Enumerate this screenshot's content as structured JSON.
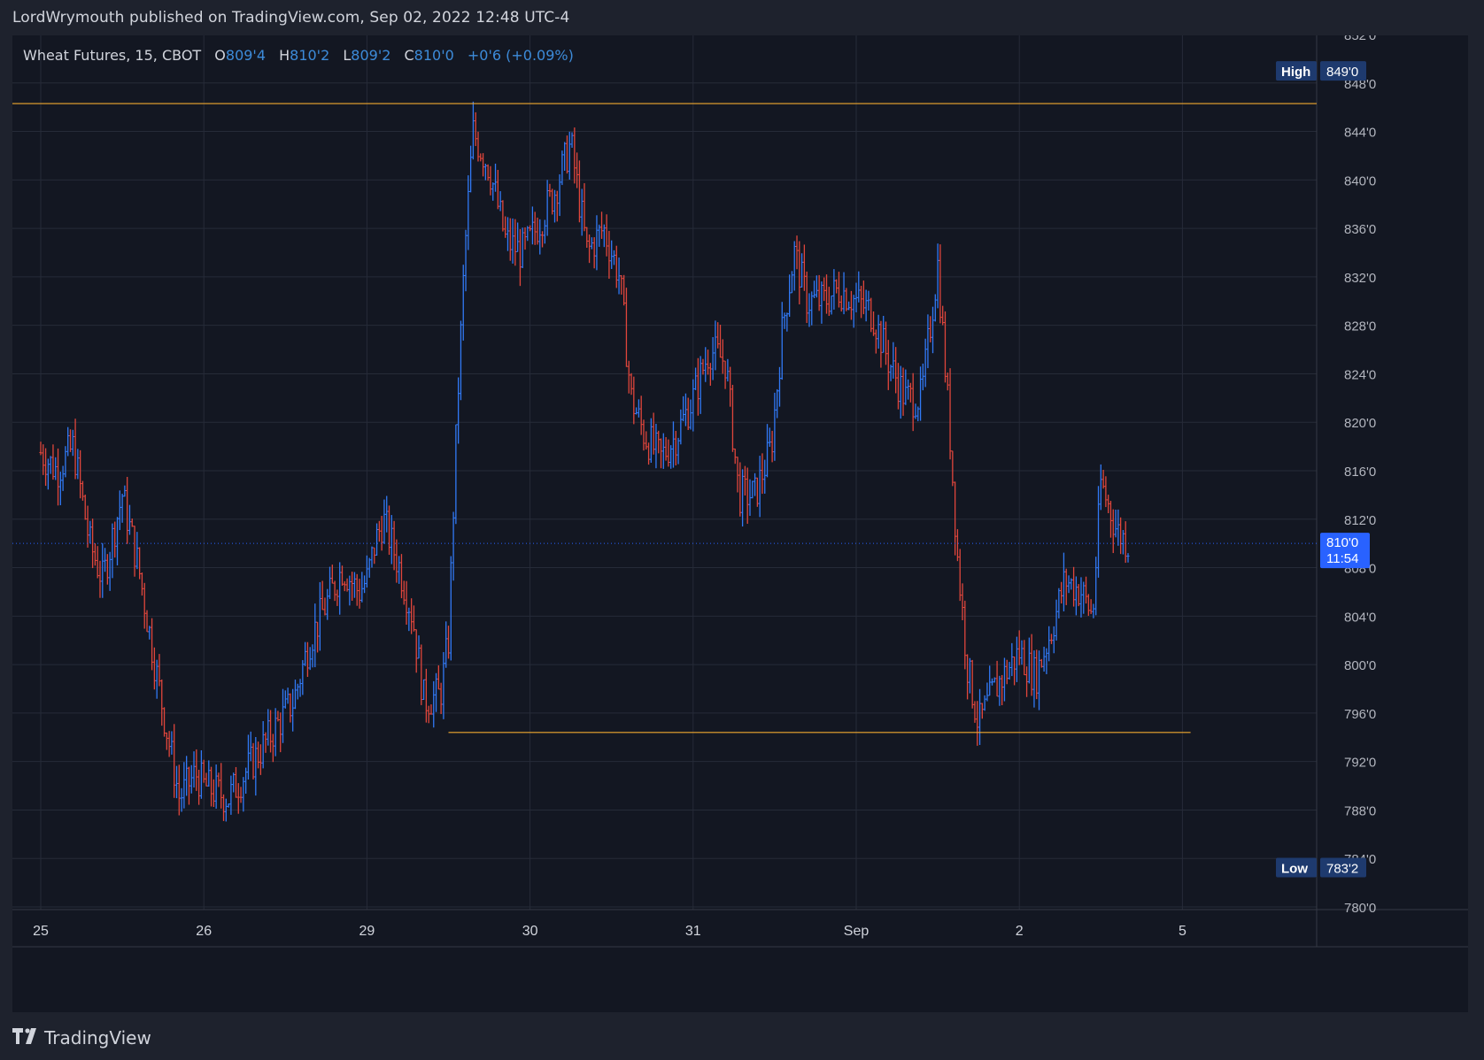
{
  "header": {
    "published": "LordWrymouth published on TradingView.com, Sep 02, 2022 12:48 UTC-4"
  },
  "legend": {
    "symbol": "Wheat Futures, 15, CBOT",
    "open_label": "O",
    "open_value": "809'4",
    "high_label": "H",
    "high_value": "810'2",
    "low_label": "L",
    "low_value": "809'2",
    "close_label": "C",
    "close_value": "810'0",
    "change": "+0'6 (+0.09%)"
  },
  "price_axis": {
    "ticks": [
      "852'0",
      "848'0",
      "844'0",
      "840'0",
      "836'0",
      "832'0",
      "828'0",
      "824'0",
      "820'0",
      "816'0",
      "812'0",
      "808'0",
      "804'0",
      "800'0",
      "796'0",
      "792'0",
      "788'0",
      "784'0",
      "780'0"
    ],
    "high_label": "High",
    "high_value": "849'0",
    "low_label": "Low",
    "low_value": "783'2",
    "last_value": "810'0",
    "countdown": "11:54"
  },
  "time_axis": {
    "labels": [
      "25",
      "26",
      "29",
      "30",
      "31",
      "Sep",
      "2",
      "5"
    ]
  },
  "colors": {
    "up": "#3179f5",
    "down": "#e0463c",
    "level_line": "#f0a830",
    "last_price": "#2962ff",
    "badge": "#1e3a6e",
    "grid": "#262b38"
  },
  "chart_data": {
    "type": "ohlc",
    "title": "Wheat Futures, 15, CBOT",
    "xlabel": "",
    "ylabel": "",
    "ylim": [
      780,
      852
    ],
    "x_categories": [
      "25",
      "26",
      "29",
      "30",
      "31",
      "Sep",
      "2",
      "5"
    ],
    "close_path": [
      {
        "x": 0.0,
        "y": 817.5
      },
      {
        "x": 0.1,
        "y": 816.0
      },
      {
        "x": 0.2,
        "y": 818.0
      },
      {
        "x": 0.3,
        "y": 810.0
      },
      {
        "x": 0.38,
        "y": 807.0
      },
      {
        "x": 0.5,
        "y": 814.0
      },
      {
        "x": 0.6,
        "y": 808.0
      },
      {
        "x": 0.7,
        "y": 800.0
      },
      {
        "x": 0.78,
        "y": 794.0
      },
      {
        "x": 0.85,
        "y": 789.0
      },
      {
        "x": 0.95,
        "y": 791.0
      },
      {
        "x": 1.0,
        "y": 790.0
      },
      {
        "x": 1.15,
        "y": 789.0
      },
      {
        "x": 1.3,
        "y": 792.0
      },
      {
        "x": 1.45,
        "y": 795.0
      },
      {
        "x": 1.55,
        "y": 797.0
      },
      {
        "x": 1.65,
        "y": 802.0
      },
      {
        "x": 1.75,
        "y": 805.0
      },
      {
        "x": 1.85,
        "y": 808.0
      },
      {
        "x": 1.95,
        "y": 806.0
      },
      {
        "x": 2.0,
        "y": 807.0
      },
      {
        "x": 2.05,
        "y": 810.0
      },
      {
        "x": 2.1,
        "y": 812.0
      },
      {
        "x": 2.2,
        "y": 808.0
      },
      {
        "x": 2.28,
        "y": 804.0
      },
      {
        "x": 2.35,
        "y": 797.0
      },
      {
        "x": 2.45,
        "y": 797.5
      },
      {
        "x": 2.5,
        "y": 802.0
      },
      {
        "x": 2.55,
        "y": 820.0
      },
      {
        "x": 2.6,
        "y": 834.0
      },
      {
        "x": 2.65,
        "y": 844.0
      },
      {
        "x": 2.75,
        "y": 841.0
      },
      {
        "x": 2.85,
        "y": 835.0
      },
      {
        "x": 2.95,
        "y": 834.0
      },
      {
        "x": 3.0,
        "y": 835.0
      },
      {
        "x": 3.15,
        "y": 839.0
      },
      {
        "x": 3.25,
        "y": 843.0
      },
      {
        "x": 3.35,
        "y": 834.0
      },
      {
        "x": 3.45,
        "y": 836.0
      },
      {
        "x": 3.55,
        "y": 832.0
      },
      {
        "x": 3.62,
        "y": 822.0
      },
      {
        "x": 3.7,
        "y": 819.0
      },
      {
        "x": 3.8,
        "y": 817.0
      },
      {
        "x": 3.9,
        "y": 819.0
      },
      {
        "x": 4.0,
        "y": 822.0
      },
      {
        "x": 4.1,
        "y": 826.0
      },
      {
        "x": 4.2,
        "y": 825.0
      },
      {
        "x": 4.28,
        "y": 814.0
      },
      {
        "x": 4.38,
        "y": 814.0
      },
      {
        "x": 4.48,
        "y": 818.0
      },
      {
        "x": 4.55,
        "y": 828.0
      },
      {
        "x": 4.62,
        "y": 834.0
      },
      {
        "x": 4.7,
        "y": 830.0
      },
      {
        "x": 4.8,
        "y": 830.0
      },
      {
        "x": 4.9,
        "y": 831.0
      },
      {
        "x": 5.0,
        "y": 830.0
      },
      {
        "x": 5.1,
        "y": 829.0
      },
      {
        "x": 5.2,
        "y": 825.0
      },
      {
        "x": 5.3,
        "y": 822.0
      },
      {
        "x": 5.4,
        "y": 822.0
      },
      {
        "x": 5.5,
        "y": 833.0
      },
      {
        "x": 5.57,
        "y": 820.0
      },
      {
        "x": 5.62,
        "y": 809.0
      },
      {
        "x": 5.68,
        "y": 800.0
      },
      {
        "x": 5.75,
        "y": 795.0
      },
      {
        "x": 5.85,
        "y": 798.0
      },
      {
        "x": 5.95,
        "y": 800.0
      },
      {
        "x": 6.0,
        "y": 801.0
      },
      {
        "x": 6.1,
        "y": 799.0
      },
      {
        "x": 6.2,
        "y": 803.0
      },
      {
        "x": 6.28,
        "y": 807.0
      },
      {
        "x": 6.38,
        "y": 806.0
      },
      {
        "x": 6.45,
        "y": 804.0
      },
      {
        "x": 6.5,
        "y": 815.0
      },
      {
        "x": 6.55,
        "y": 813.0
      },
      {
        "x": 6.6,
        "y": 811.0
      },
      {
        "x": 6.67,
        "y": 810.0
      }
    ],
    "candles_per_day": 66,
    "resistance": 846.3,
    "support": 794.4,
    "high": 849.0,
    "low": 783.25,
    "last": 810.0
  },
  "footer": {
    "brand": "TradingView"
  }
}
